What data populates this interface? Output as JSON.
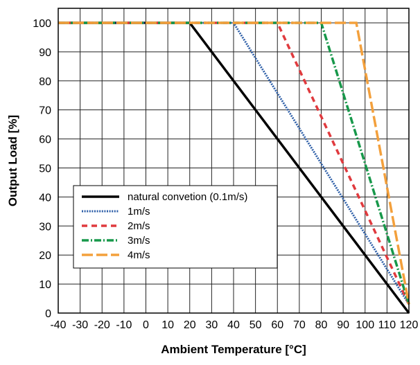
{
  "chart_data": {
    "type": "line",
    "title": "",
    "xlabel": "Ambient Temperature [°C]",
    "ylabel": "Output Load [%]",
    "xlim": [
      -40,
      120
    ],
    "ylim": [
      0,
      105
    ],
    "x_ticks": [
      -40,
      -30,
      -20,
      -10,
      0,
      10,
      20,
      30,
      40,
      50,
      60,
      70,
      80,
      90,
      100,
      110,
      120
    ],
    "y_ticks": [
      0,
      10,
      20,
      30,
      40,
      50,
      60,
      70,
      80,
      90,
      100
    ],
    "grid": true,
    "legend_position": "lower-left",
    "series": [
      {
        "name": "natural convetion (0.1m/s)",
        "color": "#000000",
        "style": "solid",
        "points": [
          [
            -40,
            100
          ],
          [
            20,
            100
          ],
          [
            120,
            0
          ]
        ]
      },
      {
        "name": "1m/s",
        "color": "#2e5fa8",
        "style": "dotted",
        "points": [
          [
            -40,
            100
          ],
          [
            40,
            100
          ],
          [
            120,
            3
          ]
        ]
      },
      {
        "name": "2m/s",
        "color": "#e03a3e",
        "style": "dashed",
        "points": [
          [
            -40,
            100
          ],
          [
            60,
            100
          ],
          [
            120,
            3
          ]
        ]
      },
      {
        "name": "3m/s",
        "color": "#17984a",
        "style": "dash-dot",
        "points": [
          [
            -40,
            100
          ],
          [
            80,
            100
          ],
          [
            120,
            3
          ]
        ]
      },
      {
        "name": "4m/s",
        "color": "#f3a03c",
        "style": "long-dash",
        "points": [
          [
            -40,
            100
          ],
          [
            96,
            100
          ],
          [
            120,
            3
          ]
        ]
      }
    ]
  }
}
